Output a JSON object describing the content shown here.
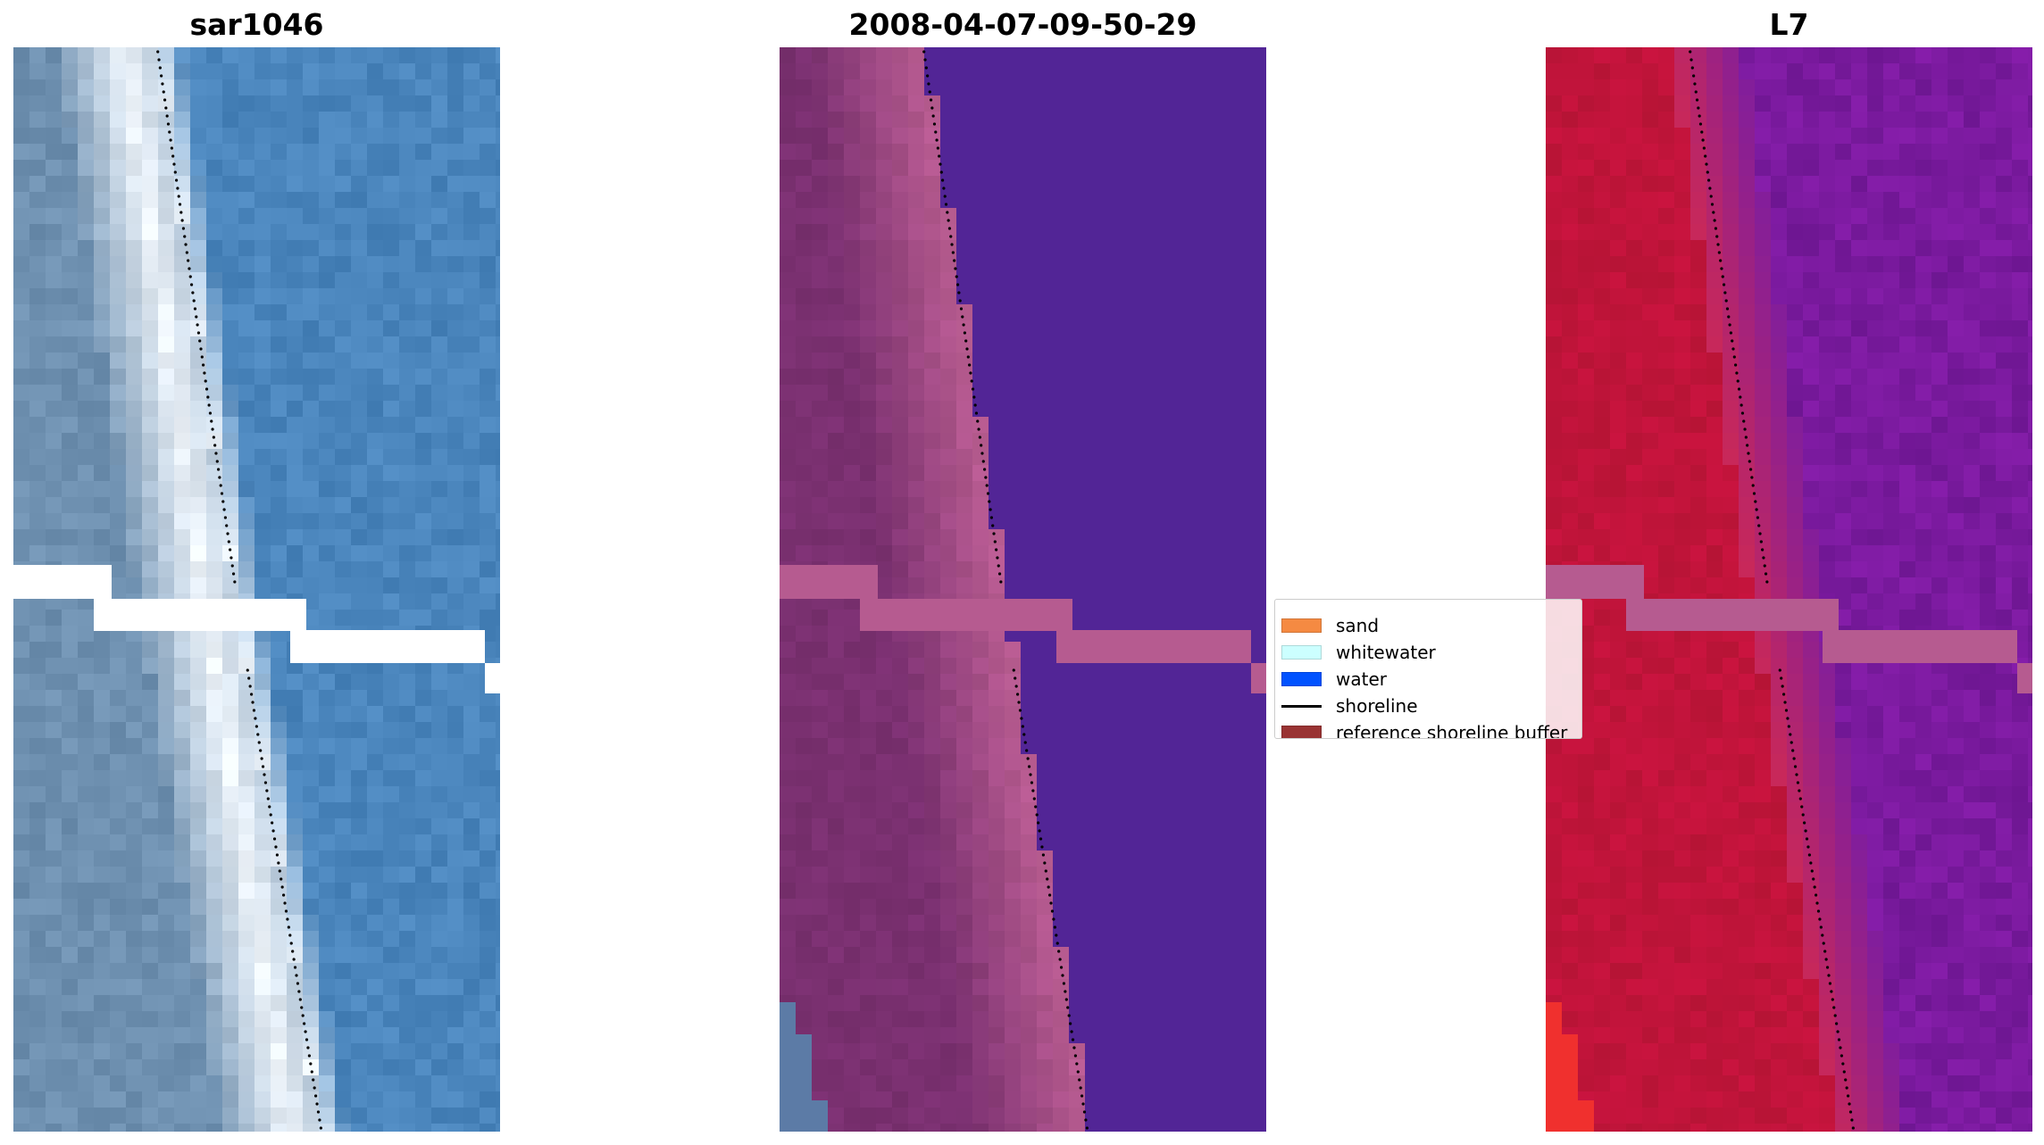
{
  "panels": [
    {
      "title": "sar1046",
      "palette": "rgb"
    },
    {
      "title": "2008-04-07-09-50-29",
      "palette": "class"
    },
    {
      "title": "L7",
      "palette": "nir"
    }
  ],
  "legend": {
    "items": [
      {
        "label": "sand",
        "color": "#f58a42",
        "kind": "patch"
      },
      {
        "label": "whitewater",
        "color": "#ccffff",
        "kind": "patch"
      },
      {
        "label": "water",
        "color": "#0052ff",
        "kind": "patch"
      },
      {
        "label": "shoreline",
        "color": "#000000",
        "kind": "line"
      },
      {
        "label": "reference shoreline buffer",
        "color": "#993333",
        "kind": "patch"
      }
    ]
  },
  "colors": {
    "class_water": "#522596",
    "class_sand_dark": "#7a3070",
    "class_sand_light": "#b65b90",
    "nir_land": "#c0143c",
    "nir_water": "#7a1a9e",
    "rgb_sea": "#4a85bc",
    "rgb_land": "#6e90b0"
  }
}
